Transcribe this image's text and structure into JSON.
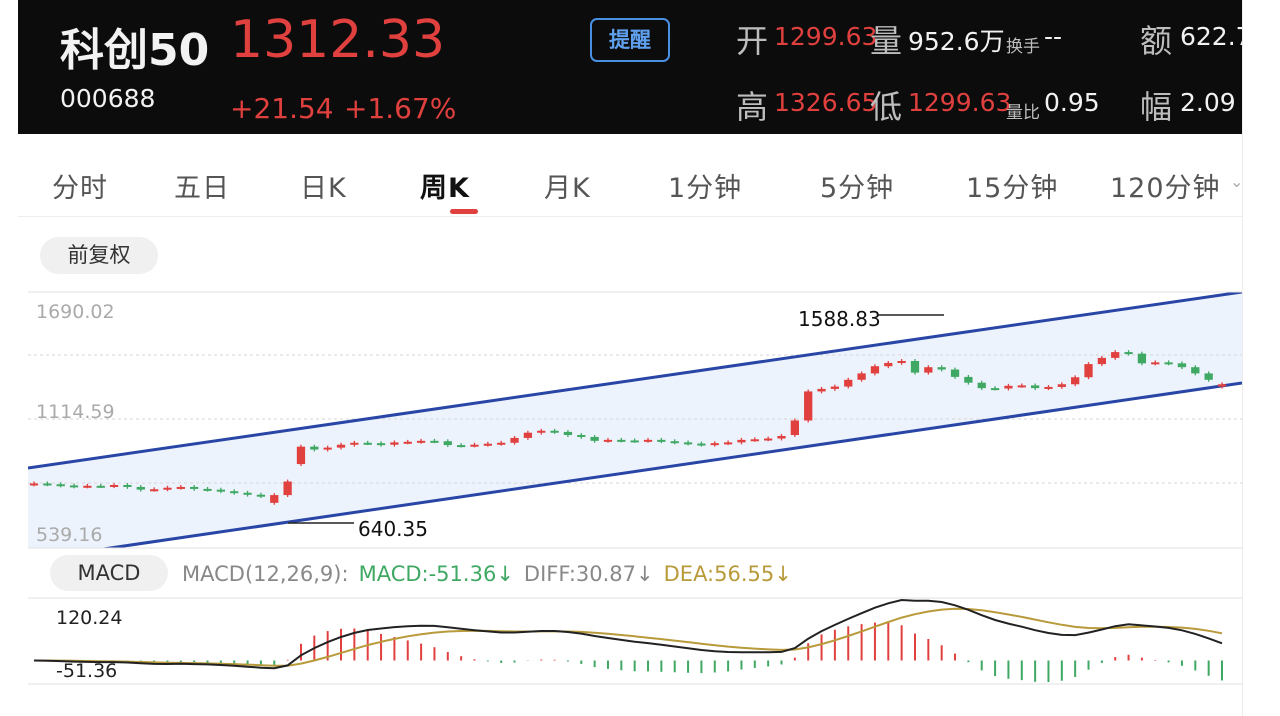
{
  "header": {
    "name": "科创50",
    "code": "000688",
    "price": "1312.33",
    "change": "+21.54",
    "change_pct": "+1.67%",
    "remind_label": "提醒",
    "stats": {
      "open_label": "开",
      "open_value": "1299.63",
      "volume_label": "量",
      "volume_value": "952.6万",
      "turnover_label": "换手",
      "turnover_value": "--",
      "amount_label": "额",
      "amount_value": "622.7",
      "high_label": "高",
      "high_value": "1326.65",
      "low_label": "低",
      "low_value": "1299.63",
      "vol_ratio_label": "量比",
      "vol_ratio_value": "0.95",
      "amplitude_label": "幅",
      "amplitude_value": "2.09"
    }
  },
  "tabs": [
    {
      "label": "分时"
    },
    {
      "label": "五日"
    },
    {
      "label": "日K"
    },
    {
      "label": "周K"
    },
    {
      "label": "月K"
    },
    {
      "label": "1分钟"
    },
    {
      "label": "5分钟"
    },
    {
      "label": "15分钟"
    },
    {
      "label": "120分钟"
    }
  ],
  "active_tab": "周K",
  "adjust_button": "前复权",
  "macd_button": "MACD",
  "macd_legend": {
    "params": "MACD(12,26,9):",
    "macd": "MACD:-51.36",
    "diff": "DIFF:30.87",
    "dea": "DEA:56.55",
    "arrow": "↓"
  },
  "colors": {
    "up": "#e0403e",
    "down": "#3fa863",
    "channel": "#2946a6",
    "channel_fill": "#edf3fc",
    "dea": "#b89a3a",
    "diff": "#222222",
    "remind_border": "#4a90e2",
    "header_bg": "#0c0c0c"
  },
  "chart_data": [
    {
      "type": "candlestick",
      "y_labels": [
        "1690.02",
        "1114.59",
        "539.16"
      ],
      "ylim": [
        539.16,
        1690.02
      ],
      "annotations": [
        {
          "label": "1588.83",
          "value": 1588.83,
          "kind": "high"
        },
        {
          "label": "640.35",
          "value": 640.35,
          "kind": "low"
        }
      ],
      "trend_channel": true,
      "closes": [
        800,
        796,
        790,
        785,
        788,
        786,
        792,
        782,
        768,
        770,
        778,
        782,
        772,
        768,
        760,
        752,
        742,
        735,
        740,
        810,
        990,
        975,
        985,
        1000,
        1010,
        1008,
        1000,
        1012,
        1015,
        1020,
        1018,
        998,
        996,
        1000,
        1005,
        1010,
        1035,
        1062,
        1072,
        1066,
        1050,
        1040,
        1020,
        1025,
        1022,
        1020,
        1025,
        1018,
        1012,
        1006,
        1000,
        1008,
        1012,
        1025,
        1028,
        1032,
        1045,
        1125,
        1275,
        1288,
        1300,
        1335,
        1368,
        1405,
        1422,
        1432,
        1372,
        1400,
        1388,
        1350,
        1320,
        1292,
        1290,
        1304,
        1306,
        1292,
        1298,
        1312,
        1348,
        1416,
        1448,
        1478,
        1470,
        1420,
        1425,
        1420,
        1400,
        1368,
        1335,
        1312
      ],
      "opens": [
        795,
        800,
        796,
        790,
        785,
        788,
        786,
        792,
        782,
        768,
        770,
        778,
        782,
        772,
        768,
        760,
        752,
        742,
        700,
        740,
        900,
        990,
        975,
        985,
        1000,
        1010,
        1008,
        1000,
        1012,
        1015,
        1020,
        1018,
        998,
        996,
        1000,
        1005,
        1010,
        1035,
        1062,
        1072,
        1066,
        1050,
        1040,
        1020,
        1025,
        1022,
        1020,
        1025,
        1018,
        1012,
        1006,
        1000,
        1008,
        1012,
        1025,
        1028,
        1032,
        1050,
        1125,
        1275,
        1288,
        1300,
        1335,
        1368,
        1405,
        1422,
        1432,
        1372,
        1400,
        1388,
        1350,
        1320,
        1292,
        1290,
        1304,
        1306,
        1292,
        1298,
        1312,
        1348,
        1416,
        1448,
        1478,
        1470,
        1420,
        1425,
        1420,
        1400,
        1368,
        1300
      ]
    },
    {
      "type": "macd",
      "y_labels": [
        "120.24",
        "-51.36"
      ],
      "diff_label": "DIFF:30.87",
      "dea_label": "DEA:56.55",
      "macd_label": "MACD:-51.36"
    }
  ]
}
